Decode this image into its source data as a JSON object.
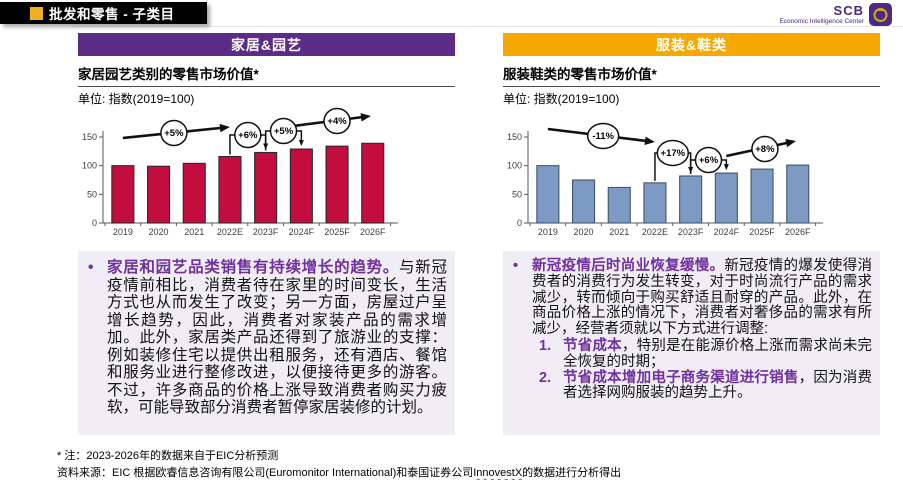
{
  "page": {
    "title": "批发和零售 - 子类目"
  },
  "logo": {
    "name": "SCB",
    "subtitle": "Economic Intelligence Center"
  },
  "colors": {
    "purple_header": "#5B2B86",
    "orange_header": "#F5A800",
    "accent_purple_text": "#7030A0",
    "red_bar": "#C30D3E",
    "blue_bar": "#7D9AC4",
    "gold_accent": "#F2B01E",
    "box_bg": "#F1EDF6"
  },
  "home": {
    "header": "家居&园艺",
    "chart_title": "家居园艺类别的零售市场价值*",
    "unit": "单位: 指数(2019=100)",
    "bullet_lead": "家居和园艺品类销售有持续增长的趋势。",
    "bullet_body": "与新冠疫情前相比，消费者待在家里的时间变长，生活方式也从而发生了改变；另一方面，房屋过户呈增长趋势，因此，消费者对家装产品的需求增加。此外，家居类产品还得到了旅游业的支撑：例如装修住宅以提供出租服务，还有酒店、餐馆和服务业进行整修改进，以便接待更多的游客。不过，许多商品的价格上涨导致消费者购买力疲软，可能导致部分消费者暂停家居装修的计划。"
  },
  "fashion": {
    "header": "服装&鞋类",
    "chart_title": "服装鞋类的零售市场价值*",
    "unit": "单位: 指数(2019=100)",
    "bullet_lead": "新冠疫情后时尚业恢复缓慢。",
    "bullet_body": "新冠疫情的爆发使得消费者的消费行为发生转变，对于时尚流行产品的需求减少，转而倾向于购买舒适且耐穿的产品。此外，在商品价格上涨的情况下，消费者对奢侈品的需求有所减少，经营者须就以下方式进行调整:",
    "list": [
      {
        "num": "1.",
        "lead": "节省成本",
        "rest": "，特别是在能源价格上涨而需求尚未完全恢复的时期；"
      },
      {
        "num": "2.",
        "lead": "节省成本增加电子商务渠道进行销售",
        "rest": "，因为消费者选择网购服装的趋势上升。"
      }
    ]
  },
  "footer": {
    "note": "* 注：2023-2026年的数据来自于EIC分析预测",
    "source_prefix": "资料来源：EIC 根据欧睿信息咨询有限公司(Euromonitor International)和泰国证券公司",
    "source_name": "InnovestX",
    "source_suffix": "的数据进行分析得出"
  },
  "chart_data": [
    {
      "type": "bar",
      "title": "家居园艺类别的零售市场价值*",
      "unit_label": "指数(2019=100)",
      "categories": [
        "2019",
        "2020",
        "2021",
        "2022E",
        "2023F",
        "2024F",
        "2025F",
        "2026F"
      ],
      "values": [
        100,
        99,
        104,
        116,
        123,
        129,
        134,
        139
      ],
      "ylim": [
        0,
        150
      ],
      "yticks": [
        0,
        50,
        100,
        150
      ],
      "grid": false,
      "legend": false,
      "bar_color": "#C30D3E",
      "bar_border": "#2b2b2b",
      "annotations": [
        {
          "kind": "arrow",
          "label": "+5%",
          "x1_bar": 0.0,
          "y1": 30,
          "x2_bar": 3.0,
          "y2": 19,
          "cx_bar": 1.43,
          "cy": 25
        },
        {
          "kind": "bracket",
          "label": "+6%",
          "from_bar": 3,
          "to_bar": 4,
          "level": 27
        },
        {
          "kind": "bracket",
          "label": "+5%",
          "from_bar": 4,
          "to_bar": 5,
          "level": 23
        },
        {
          "kind": "arrow",
          "label": "+4%",
          "x1_bar": 4.55,
          "y1": 19,
          "x2_bar": 6.95,
          "y2": 8,
          "cx_bar": 6.0,
          "cy": 13
        }
      ]
    },
    {
      "type": "bar",
      "title": "服装鞋类的零售市场价值*",
      "unit_label": "指数(2019=100)",
      "categories": [
        "2019",
        "2020",
        "2021",
        "2022E",
        "2023F",
        "2024F",
        "2025F",
        "2026F"
      ],
      "values": [
        100,
        75,
        62,
        70,
        82,
        87,
        94,
        101
      ],
      "ylim": [
        0,
        150
      ],
      "yticks": [
        0,
        50,
        100,
        150
      ],
      "grid": false,
      "legend": false,
      "bar_color": "#7D9AC4",
      "bar_border": "#44546A",
      "annotations": [
        {
          "kind": "arrow",
          "label": "-11%",
          "x1_bar": 0.0,
          "y1": 21,
          "x2_bar": 3.0,
          "y2": 34,
          "cx_bar": 1.55,
          "cy": 28
        },
        {
          "kind": "bracket",
          "label": "+17%",
          "from_bar": 3,
          "to_bar": 4,
          "level": 45
        },
        {
          "kind": "bracket",
          "label": "+6%",
          "from_bar": 4,
          "to_bar": 5,
          "level": 52
        },
        {
          "kind": "arrow",
          "label": "+8%",
          "x1_bar": 5.0,
          "y1": 48,
          "x2_bar": 6.95,
          "y2": 33,
          "cx_bar": 6.08,
          "cy": 41
        }
      ]
    }
  ]
}
